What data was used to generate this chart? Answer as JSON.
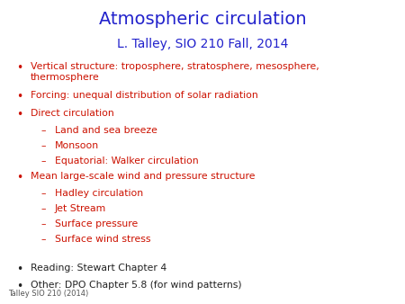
{
  "title": "Atmospheric circulation",
  "subtitle": "L. Talley, SIO 210 Fall, 2014",
  "title_color": "#2222cc",
  "subtitle_color": "#2222cc",
  "title_fontsize": 14,
  "subtitle_fontsize": 10,
  "background_color": "#ffffff",
  "bullet_color": "#cc1100",
  "reading_color": "#222222",
  "footer_color": "#555555",
  "footer_fontsize": 6,
  "bullet_fontsize": 7.8,
  "reading_fontsize": 7.8,
  "bullet_items": [
    {
      "text": "Vertical structure: troposphere, stratosphere, mesosphere,\nthermosphere",
      "level": 0,
      "color": "#cc1100"
    },
    {
      "text": "Forcing: unequal distribution of solar radiation",
      "level": 0,
      "color": "#cc1100"
    },
    {
      "text": "Direct circulation",
      "level": 0,
      "color": "#cc1100"
    },
    {
      "text": "Land and sea breeze",
      "level": 1,
      "color": "#cc1100"
    },
    {
      "text": "Monsoon",
      "level": 1,
      "color": "#cc1100"
    },
    {
      "text": "Equatorial: Walker circulation",
      "level": 1,
      "color": "#cc1100"
    },
    {
      "text": "Mean large-scale wind and pressure structure",
      "level": 0,
      "color": "#cc1100"
    },
    {
      "text": "Hadley circulation",
      "level": 1,
      "color": "#cc1100"
    },
    {
      "text": "Jet Stream",
      "level": 1,
      "color": "#cc1100"
    },
    {
      "text": "Surface pressure",
      "level": 1,
      "color": "#cc1100"
    },
    {
      "text": "Surface wind stress",
      "level": 1,
      "color": "#cc1100"
    }
  ],
  "reading_items": [
    {
      "text": "Reading: Stewart Chapter 4",
      "color": "#222222"
    },
    {
      "text": "Other: DPO Chapter 5.8 (for wind patterns)",
      "color": "#222222"
    }
  ],
  "footer": "Talley SIO 210 (2014)"
}
